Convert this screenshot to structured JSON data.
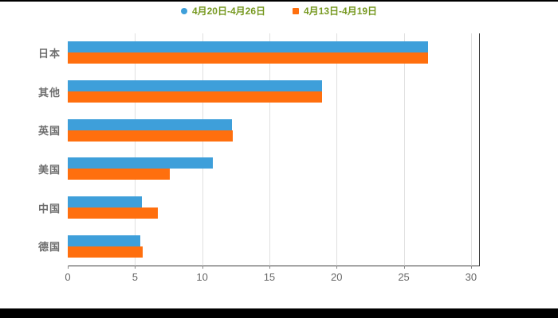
{
  "legend": {
    "text_color": "#779921",
    "items": [
      {
        "label": "4月20日-4月26日",
        "marker": "circle",
        "color": "#3E9FDA"
      },
      {
        "label": "4月13日-4月19日",
        "marker": "square",
        "color": "#FF6F0E"
      }
    ]
  },
  "chart_data": {
    "type": "bar",
    "orientation": "horizontal",
    "title": "",
    "xlabel": "",
    "ylabel": "",
    "categories": [
      "日本",
      "其他",
      "英国",
      "美国",
      "中国",
      "德国"
    ],
    "series": [
      {
        "name": "4月20日-4月26日",
        "color": "#3E9FDA",
        "values": [
          26.8,
          18.9,
          12.2,
          10.8,
          5.5,
          5.4
        ]
      },
      {
        "name": "4月13日-4月19日",
        "color": "#FF6F0E",
        "values": [
          26.8,
          18.9,
          12.3,
          7.6,
          6.7,
          5.6
        ]
      }
    ],
    "xlim": [
      0,
      30.6
    ],
    "xticks": [
      0,
      5,
      10,
      15,
      20,
      25,
      30
    ],
    "grid": true,
    "legend_position": "top",
    "axis_color": "#3f3f3f",
    "grid_color": "#e0e0e0",
    "label_color": "#6e6e6e",
    "tick_label_color": "#666666"
  }
}
